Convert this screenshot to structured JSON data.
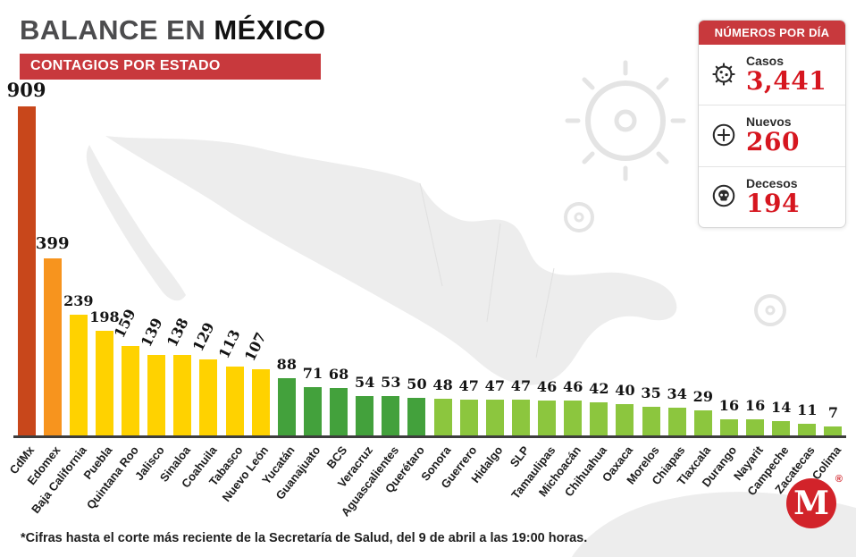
{
  "header": {
    "title_part1": "BALANCE EN ",
    "title_part2": "MÉXICO",
    "subtitle": "CONTAGIOS POR ESTADO"
  },
  "panel": {
    "title": "NÚMEROS POR DÍA",
    "rows": [
      {
        "icon": "virus-icon",
        "label": "Casos",
        "value": "3,441"
      },
      {
        "icon": "plus-circle-icon",
        "label": "Nuevos",
        "value": "260"
      },
      {
        "icon": "skull-icon",
        "label": "Decesos",
        "value": "194"
      }
    ]
  },
  "chart_data": {
    "type": "bar",
    "title": "Contagios por estado",
    "xlabel": "",
    "ylabel": "Contagios",
    "ylim": [
      0,
      909
    ],
    "grid": false,
    "legend": false,
    "height_scale_power": 0.75,
    "categories": [
      "CdMx",
      "Edomex",
      "Baja California",
      "Puebla",
      "Quintana Roo",
      "Jalisco",
      "Sinaloa",
      "Coahuila",
      "Tabasco",
      "Nuevo León",
      "Yucatán",
      "Guanajuato",
      "BCS",
      "Veracruz",
      "Aguascalientes",
      "Querétaro",
      "Sonora",
      "Guerrero",
      "Hidalgo",
      "SLP",
      "Tamaulipas",
      "Michoacán",
      "Chihuahua",
      "Oaxaca",
      "Morelos",
      "Chiapas",
      "Tlaxcala",
      "Durango",
      "Nayarit",
      "Campeche",
      "Zacatecas",
      "Colima"
    ],
    "values": [
      909,
      399,
      239,
      198,
      159,
      139,
      138,
      129,
      113,
      107,
      88,
      71,
      68,
      54,
      53,
      50,
      48,
      47,
      47,
      47,
      46,
      46,
      42,
      40,
      35,
      34,
      29,
      16,
      16,
      14,
      11,
      7
    ],
    "color_groups": [
      {
        "count": 1,
        "color": "#c8471b"
      },
      {
        "count": 1,
        "color": "#f7941e"
      },
      {
        "count": 8,
        "color": "#ffd200"
      },
      {
        "count": 6,
        "color": "#43a13c"
      },
      {
        "count": 16,
        "color": "#8cc63e"
      }
    ],
    "rotated_value_label_indices": [
      4,
      5,
      6,
      7,
      8,
      9
    ]
  },
  "footnote": "*Cifras hasta el corte más reciente de la Secretaría de Salud, del 9 de abril a las 19:00 horas.",
  "logo": {
    "letter": "M",
    "registered": "®"
  },
  "colors": {
    "brand_red": "#c8393d",
    "number_red": "#d6161f",
    "logo_red": "#d2232a"
  }
}
